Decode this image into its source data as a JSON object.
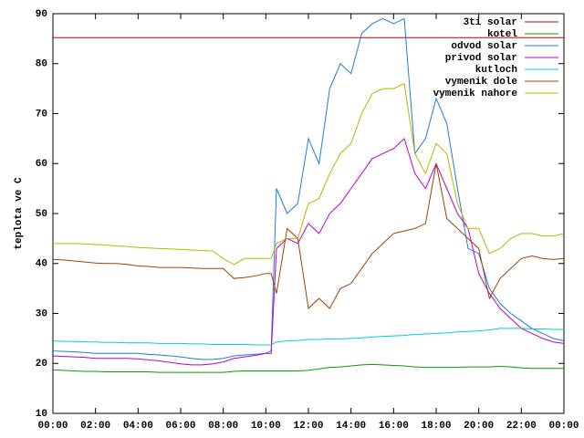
{
  "chart_data": {
    "type": "line",
    "ylabel": "teplota ve C",
    "legend": "top-right",
    "grid": false,
    "xlim": [
      0,
      24
    ],
    "ylim": [
      10,
      90
    ],
    "yticks": [
      10,
      20,
      30,
      40,
      50,
      60,
      70,
      80,
      90
    ],
    "xticks": [
      {
        "value": 0,
        "label": "00:00"
      },
      {
        "value": 2,
        "label": "02:00"
      },
      {
        "value": 4,
        "label": "04:00"
      },
      {
        "value": 6,
        "label": "06:00"
      },
      {
        "value": 8,
        "label": "08:00"
      },
      {
        "value": 10,
        "label": "10:00"
      },
      {
        "value": 12,
        "label": "12:00"
      },
      {
        "value": 14,
        "label": "14:00"
      },
      {
        "value": 16,
        "label": "16:00"
      },
      {
        "value": 18,
        "label": "18:00"
      },
      {
        "value": 20,
        "label": "20:00"
      },
      {
        "value": 22,
        "label": "22:00"
      },
      {
        "value": 24,
        "label": "00:00"
      }
    ],
    "x": [
      0,
      0.5,
      1,
      1.5,
      2,
      2.5,
      3,
      3.5,
      4,
      4.5,
      5,
      5.5,
      6,
      6.5,
      7,
      7.5,
      8,
      8.5,
      9,
      9.5,
      10,
      10.25,
      10.5,
      11,
      11.5,
      12,
      12.5,
      13,
      13.5,
      14,
      14.5,
      15,
      15.5,
      16,
      16.5,
      17,
      17.5,
      18,
      18.5,
      19,
      19.5,
      20,
      20.5,
      21,
      21.5,
      22,
      22.5,
      23,
      23.5,
      24
    ],
    "series": [
      {
        "name": "3ti solar",
        "color": "#c00000",
        "values": [
          85.2,
          85.2,
          85.2,
          85.2,
          85.2,
          85.2,
          85.2,
          85.2,
          85.2,
          85.2,
          85.2,
          85.2,
          85.2,
          85.2,
          85.2,
          85.2,
          85.2,
          85.2,
          85.2,
          85.2,
          85.2,
          85.2,
          85.2,
          85.2,
          85.2,
          85.2,
          85.2,
          85.2,
          85.2,
          85.2,
          85.2,
          85.2,
          85.2,
          85.2,
          85.2,
          85.2,
          85.2,
          85.2,
          85.2,
          85.2,
          85.2,
          85.2,
          85.2,
          85.2,
          85.2,
          85.2,
          85.2,
          85.2,
          85.2,
          85.2
        ]
      },
      {
        "name": "kotel",
        "color": "#00a000",
        "values": [
          18.7,
          18.6,
          18.5,
          18.4,
          18.4,
          18.3,
          18.3,
          18.3,
          18.3,
          18.3,
          18.2,
          18.2,
          18.2,
          18.2,
          18.2,
          18.2,
          18.2,
          18.4,
          18.5,
          18.5,
          18.5,
          18.5,
          18.5,
          18.5,
          18.5,
          18.6,
          18.9,
          19.2,
          19.3,
          19.5,
          19.7,
          19.8,
          19.7,
          19.6,
          19.5,
          19.3,
          19.2,
          19.2,
          19.2,
          19.2,
          19.3,
          19.3,
          19.3,
          19.4,
          19.3,
          19.1,
          19.0,
          19.0,
          19.0,
          19.0
        ]
      },
      {
        "name": "odvod solar",
        "color": "#1a7de0",
        "values": [
          22.5,
          22.4,
          22.3,
          22.2,
          22,
          22,
          22,
          22,
          22,
          21.8,
          21.7,
          21.5,
          21.3,
          21,
          20.8,
          20.8,
          21,
          21.5,
          21.7,
          21.8,
          22,
          22.5,
          55,
          50,
          52,
          65,
          60,
          75,
          80,
          78,
          86,
          88,
          89,
          88,
          89,
          62,
          65,
          73,
          68,
          55,
          43,
          42,
          35,
          32,
          30,
          28.5,
          27,
          26,
          25,
          24.5
        ]
      },
      {
        "name": "privod solar",
        "color": "#c000c0",
        "values": [
          21.5,
          21.4,
          21.3,
          21.2,
          21,
          21,
          21,
          21,
          20.9,
          20.7,
          20.5,
          20.2,
          19.9,
          19.7,
          19.7,
          19.9,
          20.3,
          21,
          21.3,
          21.6,
          22,
          22,
          43,
          45,
          44,
          48,
          46,
          50,
          52,
          55,
          58,
          61,
          62,
          63,
          65,
          58,
          55,
          60,
          55,
          50,
          47,
          38,
          34,
          31,
          29,
          27,
          26,
          25,
          24.3,
          24
        ]
      },
      {
        "name": "kutloch",
        "color": "#00d0d0",
        "values": [
          24.5,
          24.4,
          24.4,
          24.3,
          24.3,
          24.2,
          24.2,
          24.1,
          24.1,
          24.1,
          24,
          24,
          24,
          23.9,
          23.9,
          23.8,
          23.8,
          23.8,
          23.8,
          23.7,
          23.7,
          23.7,
          24.3,
          24.5,
          24.6,
          24.8,
          24.8,
          24.9,
          24.9,
          25,
          25.1,
          25.3,
          25.4,
          25.5,
          25.6,
          25.8,
          25.9,
          26,
          26.1,
          26.3,
          26.4,
          26.5,
          26.7,
          27,
          27,
          27,
          26.9,
          26.9,
          26.8,
          26.8
        ]
      },
      {
        "name": "vymenik dole",
        "color": "#a04000",
        "values": [
          40.8,
          40.7,
          40.5,
          40.3,
          40.1,
          40,
          40,
          39.8,
          39.5,
          39.4,
          39.2,
          39.2,
          39.2,
          39.1,
          39,
          39,
          39,
          37,
          37.2,
          37.5,
          38,
          38,
          34,
          47,
          45,
          31,
          33,
          31,
          35,
          36,
          39,
          42,
          44,
          46,
          46.5,
          47,
          48,
          60,
          49,
          47,
          45,
          43,
          33,
          37,
          39,
          41,
          41.5,
          41,
          40.8,
          41
        ]
      },
      {
        "name": "vymenik nahore",
        "color": "#c0b000",
        "values": [
          44,
          44,
          44,
          43.9,
          43.8,
          43.7,
          43.5,
          43.4,
          43.2,
          43.1,
          43,
          42.9,
          42.8,
          42.7,
          42.6,
          42.5,
          41,
          39.8,
          41,
          41,
          41,
          41,
          44,
          45,
          45,
          52,
          53,
          58,
          62,
          64,
          70,
          74,
          75,
          75,
          76,
          62,
          58,
          64,
          62,
          52,
          47,
          47,
          42,
          43,
          45,
          46,
          46,
          45.5,
          45.5,
          46
        ]
      }
    ]
  }
}
